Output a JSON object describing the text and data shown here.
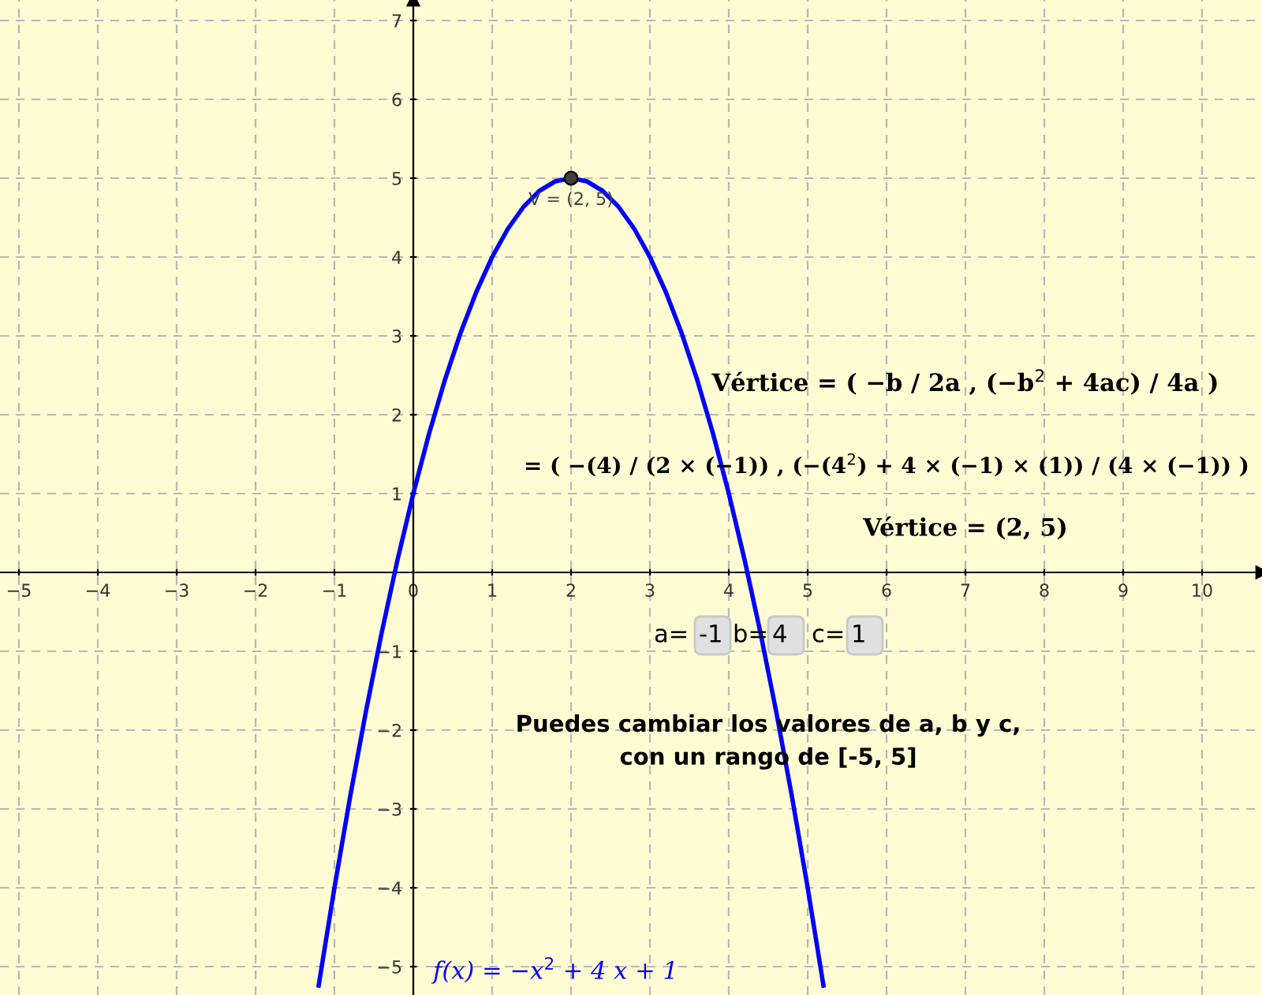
{
  "chart_data": {
    "type": "line",
    "xlim": [
      -5.24,
      10.76
    ],
    "ylim": [
      -5.36,
      7.26
    ],
    "xticks": [
      {
        "value": -5,
        "label": "−5"
      },
      {
        "value": -4,
        "label": "−4"
      },
      {
        "value": -3,
        "label": "−3"
      },
      {
        "value": -2,
        "label": "−2"
      },
      {
        "value": -1,
        "label": "−1"
      },
      0,
      1,
      2,
      3,
      4,
      5,
      6,
      7,
      8,
      9,
      10
    ],
    "yticks": [
      {
        "value": -5,
        "label": "−5"
      },
      {
        "value": -4,
        "label": "−4"
      },
      {
        "value": -3,
        "label": "−3"
      },
      {
        "value": -2,
        "label": "−2"
      },
      {
        "value": -1,
        "label": "−1"
      },
      1,
      2,
      3,
      4,
      5,
      6,
      7
    ],
    "grid": true,
    "legend": false,
    "series": [
      {
        "name": "f(x) = −x$^{2}$ + 4 x + 1",
        "type": "line",
        "color": "#0000ff",
        "marker": "none",
        "line_style": "solid",
        "x": [
          -1.2,
          -1.0,
          -0.8,
          -0.6,
          -0.4,
          -0.2,
          0,
          0.2,
          0.4,
          0.6,
          0.8,
          1.0,
          1.2,
          1.4,
          1.6,
          1.8,
          2.0,
          2.2,
          2.4,
          2.6,
          2.8,
          3.0,
          3.2,
          3.4,
          3.6,
          3.8,
          4.0,
          4.2,
          4.4,
          4.6,
          4.8,
          5.0,
          5.2
        ],
        "values": [
          -5.24,
          -4,
          -2.84,
          -1.76,
          -0.76,
          0.16,
          1,
          1.76,
          2.44,
          3.04,
          3.56,
          4,
          4.36,
          4.64,
          4.84,
          4.96,
          5,
          4.96,
          4.84,
          4.64,
          4.36,
          4,
          3.56,
          3.04,
          2.44,
          1.76,
          1,
          0.16,
          -0.76,
          -1.76,
          -2.84,
          -4,
          -5.24
        ]
      },
      {
        "type": "scatter",
        "color": "#404040",
        "marker": "circle",
        "x": [
          2
        ],
        "values": [
          5
        ]
      }
    ],
    "annotations": [
      {
        "text": "V = (2, 5)",
        "x": 2,
        "y": 5
      },
      "Vértice = ( −b / 2a , (−b$^{2}$ + 4ac) / 4a )",
      "= ( −(4) / (2 × (−1)) , (−(4$^{2}$) + 4 × (−1) × (1)) / (4 × (−1)) )",
      "Vértice = (2, 5)",
      "a=",
      "-1",
      "b=",
      "4",
      "c=",
      "1",
      "Puedes cambiar los valores de a, b y c,\ncon un rango de [-5, 5]"
    ]
  }
}
